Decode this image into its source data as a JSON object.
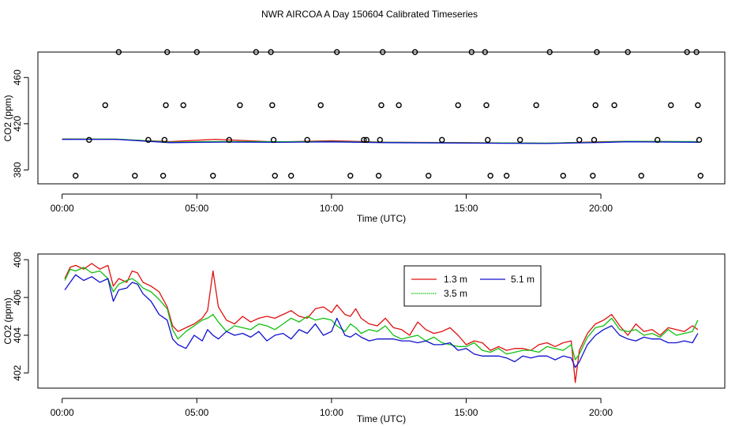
{
  "title": "NWR AIRCOA A  Day 150604  Calibrated Timeseries",
  "colors": {
    "red": "#e01010",
    "green": "#10c010",
    "blue": "#1010d0",
    "axis": "#000000"
  },
  "chart_data": [
    {
      "id": "top",
      "type": "line",
      "xlabel": "Time (UTC)",
      "ylabel": "CO2 (ppm)",
      "xlim": [
        -0.9,
        24.6
      ],
      "ylim": [
        368,
        482
      ],
      "xticks": [
        0,
        5,
        10,
        15,
        20
      ],
      "xticklabels": [
        "00:00",
        "05:00",
        "10:00",
        "15:00",
        "20:00"
      ],
      "yticks": [
        380,
        420,
        460
      ],
      "yticklabels": [
        "380",
        "420",
        "460"
      ],
      "series": [
        {
          "name": "1.3 m",
          "color": "#e01010",
          "x": [
            0.0,
            2.0,
            4.0,
            5.7,
            8.0,
            10.0,
            12.0,
            15.0,
            18.0,
            20.0,
            21.0,
            23.6
          ],
          "values": [
            406.8,
            406.5,
            404.5,
            406.5,
            404.2,
            405.3,
            404.0,
            403.6,
            403.1,
            404.4,
            404.8,
            404.3
          ]
        },
        {
          "name": "3.5 m",
          "color": "#10c010",
          "x": [
            0.0,
            2.0,
            4.0,
            6.0,
            8.0,
            10.0,
            12.0,
            15.0,
            18.0,
            20.0,
            21.0,
            23.6
          ],
          "values": [
            406.7,
            406.7,
            404.1,
            404.6,
            404.4,
            404.6,
            403.9,
            403.5,
            403.2,
            404.1,
            404.7,
            404.5
          ]
        },
        {
          "name": "5.1 m",
          "color": "#1010d0",
          "x": [
            0.0,
            2.0,
            4.0,
            6.0,
            8.0,
            10.0,
            12.0,
            15.0,
            18.0,
            20.0,
            21.0,
            23.6
          ],
          "values": [
            406.4,
            406.5,
            403.6,
            404.1,
            403.9,
            404.3,
            403.6,
            403.2,
            402.9,
            403.8,
            404.4,
            404.0
          ]
        }
      ],
      "points": {
        "name": "calibration",
        "x": [
          0.5,
          1.0,
          1.6,
          2.1,
          2.7,
          3.2,
          3.75,
          3.8,
          3.85,
          3.9,
          4.5,
          5.0,
          5.6,
          6.2,
          6.6,
          7.2,
          7.75,
          7.8,
          7.85,
          7.9,
          8.5,
          9.1,
          9.6,
          10.2,
          10.7,
          11.2,
          11.3,
          11.75,
          11.8,
          11.85,
          11.9,
          12.5,
          13.1,
          13.6,
          14.1,
          14.7,
          15.2,
          15.7,
          15.75,
          15.8,
          15.9,
          16.5,
          17.0,
          17.6,
          18.1,
          18.6,
          19.2,
          19.7,
          19.75,
          19.8,
          19.85,
          20.5,
          21.0,
          21.5,
          22.1,
          22.6,
          23.2,
          23.55,
          23.6,
          23.65,
          23.7
        ],
        "values": [
          375,
          406,
          436,
          482,
          375,
          406,
          375,
          406,
          436,
          482,
          436,
          482,
          375,
          406,
          436,
          482,
          482,
          436,
          406,
          375,
          375,
          406,
          436,
          482,
          375,
          406,
          406,
          375,
          406,
          436,
          482,
          436,
          482,
          375,
          406,
          436,
          482,
          482,
          436,
          406,
          375,
          375,
          406,
          436,
          482,
          375,
          406,
          375,
          406,
          436,
          482,
          436,
          482,
          375,
          406,
          436,
          482,
          482,
          436,
          406,
          375
        ]
      }
    },
    {
      "id": "bottom",
      "type": "line",
      "xlabel": "Time (UTC)",
      "ylabel": "CO2 (ppm)",
      "xlim": [
        -0.9,
        24.6
      ],
      "ylim": [
        401.2,
        408.3
      ],
      "xticks": [
        0,
        5,
        10,
        15,
        20
      ],
      "xticklabels": [
        "00:00",
        "05:00",
        "10:00",
        "15:00",
        "20:00"
      ],
      "yticks": [
        402,
        404,
        406,
        408
      ],
      "yticklabels": [
        "402",
        "404",
        "406",
        "408"
      ],
      "legend": {
        "position": "top-center",
        "entries": [
          "1.3 m",
          "5.1 m",
          "3.5 m"
        ]
      },
      "series": [
        {
          "name": "1.3 m",
          "color": "#e01010",
          "x": [
            0.1,
            0.3,
            0.5,
            0.8,
            1.1,
            1.4,
            1.7,
            1.9,
            2.1,
            2.4,
            2.6,
            2.8,
            3.0,
            3.3,
            3.6,
            3.9,
            4.1,
            4.3,
            4.6,
            4.9,
            5.2,
            5.4,
            5.6,
            5.8,
            6.1,
            6.4,
            6.7,
            7.0,
            7.3,
            7.6,
            7.9,
            8.2,
            8.5,
            8.8,
            9.1,
            9.4,
            9.7,
            10.0,
            10.2,
            10.5,
            10.7,
            10.9,
            11.1,
            11.4,
            11.7,
            12.0,
            12.3,
            12.6,
            12.9,
            13.2,
            13.5,
            13.8,
            14.1,
            14.4,
            14.7,
            15.0,
            15.3,
            15.6,
            15.9,
            16.2,
            16.5,
            16.8,
            17.1,
            17.4,
            17.7,
            18.0,
            18.3,
            18.6,
            18.9,
            19.05,
            19.2,
            19.5,
            19.8,
            20.1,
            20.4,
            20.7,
            21.0,
            21.3,
            21.6,
            21.9,
            22.2,
            22.5,
            22.8,
            23.1,
            23.4,
            23.6
          ],
          "values": [
            407.0,
            407.6,
            407.7,
            407.5,
            407.8,
            407.5,
            407.7,
            406.6,
            407.0,
            406.8,
            407.4,
            407.3,
            406.8,
            406.6,
            406.3,
            405.5,
            404.5,
            404.2,
            404.4,
            404.6,
            404.9,
            405.3,
            407.4,
            405.5,
            404.8,
            404.6,
            405.0,
            404.7,
            404.9,
            405.0,
            404.9,
            405.1,
            405.3,
            405.0,
            404.9,
            405.4,
            405.5,
            405.2,
            405.6,
            405.1,
            405.0,
            405.4,
            404.9,
            404.6,
            404.5,
            404.9,
            404.4,
            404.3,
            404.0,
            404.7,
            404.3,
            404.1,
            404.2,
            404.4,
            404.0,
            403.5,
            403.7,
            403.6,
            403.2,
            403.4,
            403.2,
            403.3,
            403.3,
            403.2,
            403.5,
            403.6,
            403.4,
            403.6,
            403.7,
            401.5,
            403.2,
            404.1,
            404.6,
            404.8,
            405.1,
            404.5,
            404.0,
            404.6,
            404.2,
            404.3,
            404.0,
            404.4,
            404.3,
            404.2,
            404.5,
            404.3
          ]
        },
        {
          "name": "3.5 m",
          "color": "#10c010",
          "x": [
            0.1,
            0.3,
            0.5,
            0.8,
            1.1,
            1.4,
            1.7,
            1.9,
            2.1,
            2.4,
            2.6,
            2.8,
            3.0,
            3.3,
            3.6,
            3.9,
            4.1,
            4.3,
            4.6,
            4.9,
            5.2,
            5.4,
            5.6,
            5.8,
            6.1,
            6.4,
            6.7,
            7.0,
            7.3,
            7.6,
            7.9,
            8.2,
            8.5,
            8.8,
            9.1,
            9.4,
            9.7,
            10.0,
            10.2,
            10.5,
            10.7,
            10.9,
            11.1,
            11.4,
            11.7,
            12.0,
            12.3,
            12.6,
            12.9,
            13.2,
            13.5,
            13.8,
            14.1,
            14.4,
            14.7,
            15.0,
            15.3,
            15.6,
            15.9,
            16.2,
            16.5,
            16.8,
            17.1,
            17.4,
            17.7,
            18.0,
            18.3,
            18.6,
            18.9,
            19.05,
            19.2,
            19.5,
            19.8,
            20.1,
            20.4,
            20.7,
            21.0,
            21.3,
            21.6,
            21.9,
            22.2,
            22.5,
            22.8,
            23.1,
            23.4,
            23.6
          ],
          "values": [
            406.9,
            407.5,
            407.4,
            407.6,
            407.3,
            407.4,
            407.0,
            406.3,
            406.7,
            406.9,
            407.0,
            406.8,
            406.5,
            406.3,
            405.9,
            405.4,
            404.3,
            403.8,
            404.2,
            404.5,
            404.8,
            404.9,
            405.1,
            404.7,
            404.2,
            404.5,
            404.4,
            404.3,
            404.6,
            404.5,
            404.3,
            404.6,
            404.9,
            404.7,
            405.0,
            404.8,
            404.9,
            404.8,
            404.5,
            404.2,
            404.6,
            404.4,
            404.1,
            404.3,
            404.2,
            404.5,
            404.0,
            403.8,
            403.9,
            404.0,
            403.7,
            403.9,
            403.6,
            403.5,
            403.4,
            403.4,
            403.6,
            403.2,
            403.1,
            403.3,
            403.0,
            403.1,
            403.2,
            403.2,
            403.1,
            403.4,
            403.3,
            403.2,
            403.5,
            402.7,
            403.0,
            403.9,
            404.4,
            404.5,
            404.9,
            404.3,
            404.2,
            404.3,
            404.0,
            404.1,
            403.9,
            404.3,
            404.0,
            404.1,
            404.2,
            404.8
          ]
        },
        {
          "name": "5.1 m",
          "color": "#1010d0",
          "x": [
            0.1,
            0.3,
            0.5,
            0.8,
            1.1,
            1.4,
            1.7,
            1.9,
            2.1,
            2.4,
            2.6,
            2.8,
            3.0,
            3.3,
            3.6,
            3.9,
            4.1,
            4.3,
            4.6,
            4.9,
            5.2,
            5.4,
            5.6,
            5.8,
            6.1,
            6.4,
            6.7,
            7.0,
            7.3,
            7.6,
            7.9,
            8.2,
            8.5,
            8.8,
            9.1,
            9.4,
            9.7,
            10.0,
            10.2,
            10.5,
            10.7,
            10.9,
            11.1,
            11.4,
            11.7,
            12.0,
            12.3,
            12.6,
            12.9,
            13.2,
            13.5,
            13.8,
            14.1,
            14.4,
            14.7,
            15.0,
            15.3,
            15.6,
            15.9,
            16.2,
            16.5,
            16.8,
            17.1,
            17.4,
            17.7,
            18.0,
            18.3,
            18.6,
            18.9,
            19.05,
            19.2,
            19.5,
            19.8,
            20.1,
            20.4,
            20.7,
            21.0,
            21.3,
            21.6,
            21.9,
            22.2,
            22.5,
            22.8,
            23.1,
            23.4,
            23.6
          ],
          "values": [
            406.4,
            406.8,
            407.2,
            406.9,
            407.1,
            406.8,
            407.0,
            405.8,
            406.4,
            406.5,
            406.8,
            406.7,
            406.2,
            405.8,
            405.1,
            404.8,
            403.8,
            403.5,
            403.3,
            404.0,
            403.7,
            404.3,
            404.0,
            403.8,
            404.2,
            404.0,
            404.1,
            403.9,
            404.2,
            403.7,
            404.0,
            404.1,
            403.8,
            404.3,
            404.1,
            404.6,
            404.0,
            404.2,
            404.9,
            404.0,
            403.9,
            404.1,
            403.9,
            403.7,
            403.8,
            403.8,
            403.8,
            403.7,
            403.7,
            403.6,
            403.7,
            403.5,
            403.5,
            403.6,
            403.2,
            403.3,
            403.0,
            402.9,
            402.9,
            402.9,
            402.8,
            402.6,
            402.9,
            402.8,
            402.9,
            402.9,
            402.7,
            402.9,
            402.8,
            402.3,
            402.6,
            403.5,
            404.0,
            404.3,
            404.5,
            404.0,
            403.8,
            403.7,
            403.9,
            403.8,
            403.8,
            403.6,
            403.6,
            403.7,
            403.6,
            404.1
          ]
        }
      ]
    }
  ]
}
